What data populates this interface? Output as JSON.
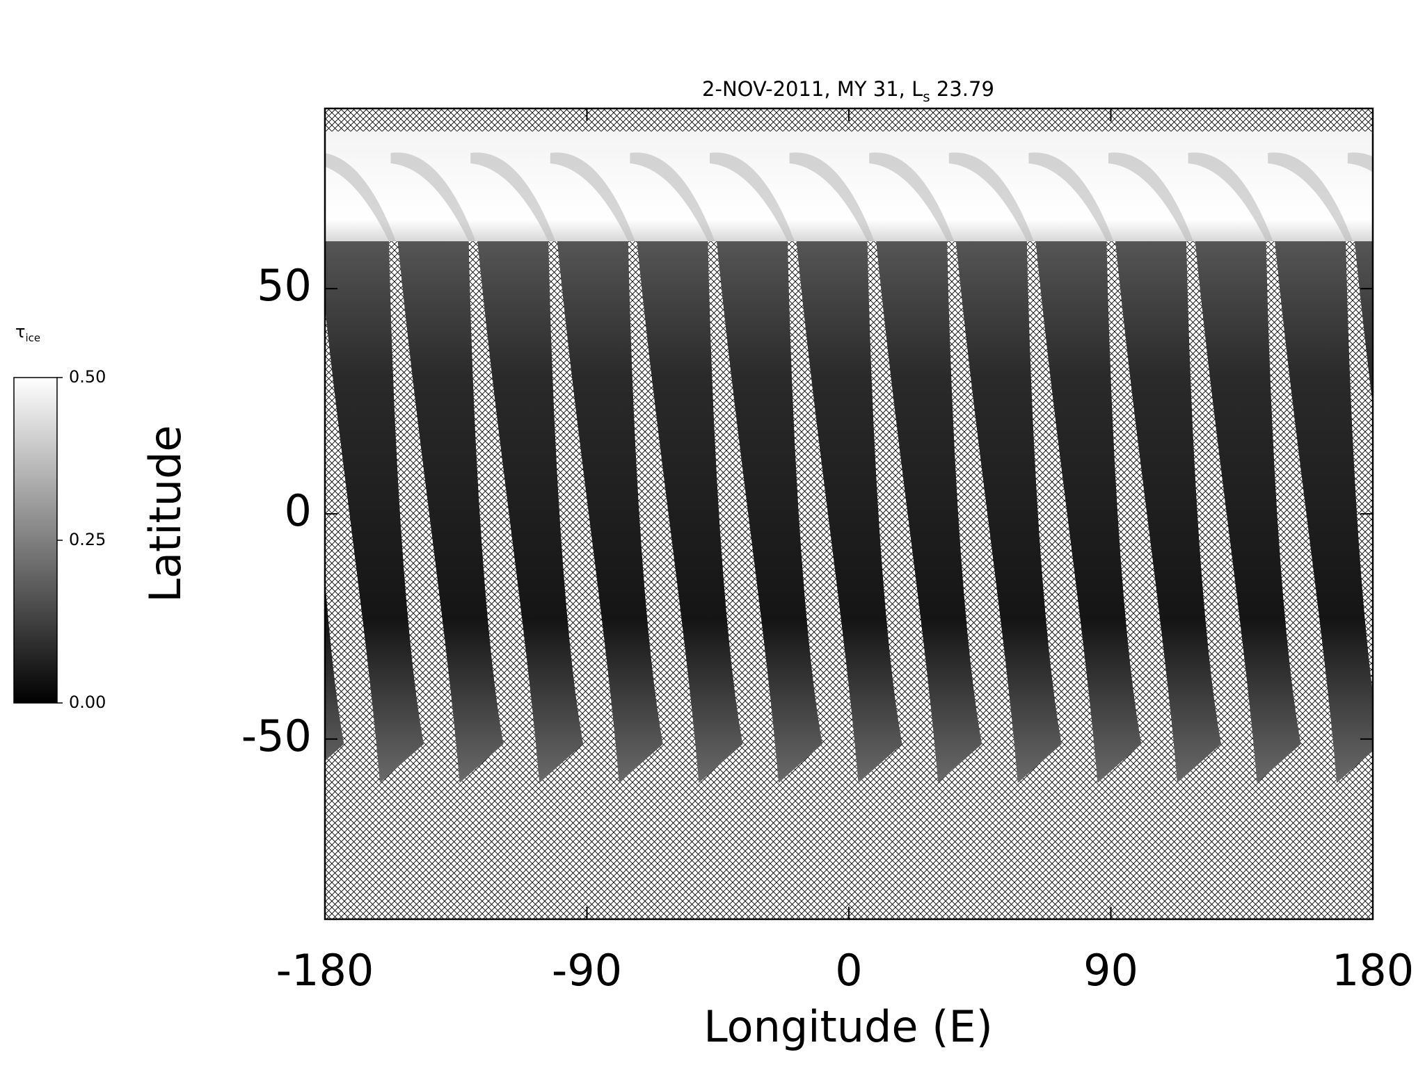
{
  "chart_data": {
    "type": "map",
    "title_parts": [
      "2-NOV-2011, MY 31,  L",
      "s",
      " 23.79"
    ],
    "xlabel": "Longitude (E)",
    "ylabel": "Latitude",
    "xlim": [
      -180,
      180
    ],
    "ylim": [
      -90,
      90
    ],
    "xticks": [
      -180,
      -90,
      0,
      90,
      180
    ],
    "yticks": [
      -50,
      0,
      50
    ],
    "colorbar": {
      "label_parts": [
        "τ",
        "ice"
      ],
      "lim": [
        0,
        0.5
      ],
      "colors": [
        "#000000",
        "#ffffff"
      ],
      "ticks": [
        {
          "value": 0,
          "label": "0.00"
        },
        {
          "value": 0.25,
          "label": "0.25"
        },
        {
          "value": 0.5,
          "label": "0.50"
        }
      ]
    }
  }
}
